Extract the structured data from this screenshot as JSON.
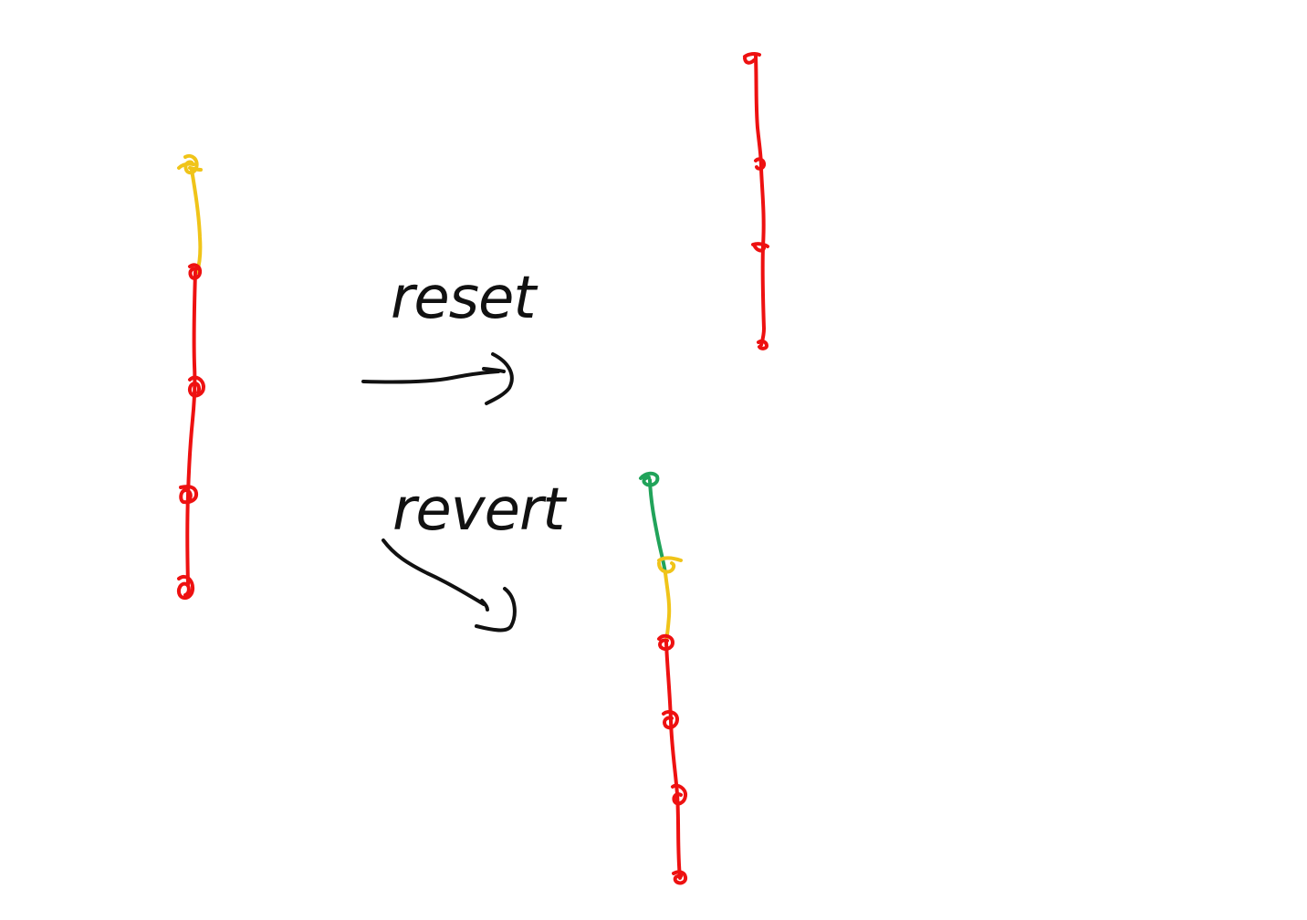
{
  "colors": {
    "background": "#ffffff",
    "ink": "#111111",
    "red": "#ee1111",
    "yellow": "#f0c419",
    "green": "#21a35a"
  },
  "labels": {
    "reset": "reset",
    "revert": "revert"
  },
  "diagram": {
    "before_state": {
      "commits": [
        "yellow",
        "red",
        "red",
        "red",
        "red"
      ]
    },
    "after_reset": {
      "commits": [
        "red",
        "red",
        "red",
        "red"
      ]
    },
    "after_revert": {
      "commits": [
        "green",
        "yellow",
        "red",
        "red",
        "red",
        "red"
      ]
    }
  }
}
